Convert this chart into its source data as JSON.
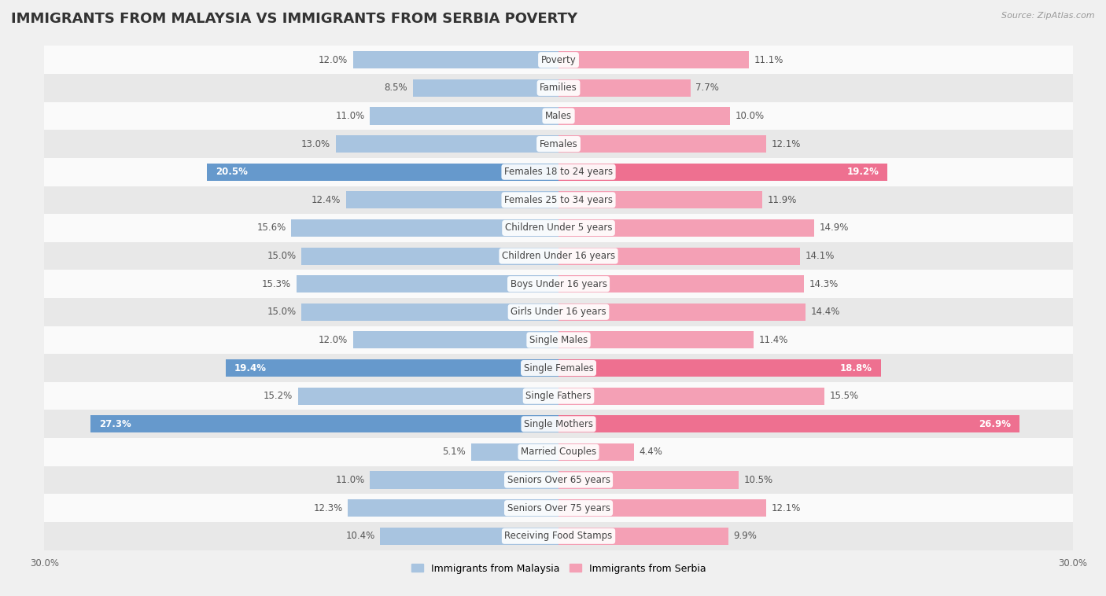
{
  "title": "IMMIGRANTS FROM MALAYSIA VS IMMIGRANTS FROM SERBIA POVERTY",
  "source": "Source: ZipAtlas.com",
  "categories": [
    "Poverty",
    "Families",
    "Males",
    "Females",
    "Females 18 to 24 years",
    "Females 25 to 34 years",
    "Children Under 5 years",
    "Children Under 16 years",
    "Boys Under 16 years",
    "Girls Under 16 years",
    "Single Males",
    "Single Females",
    "Single Fathers",
    "Single Mothers",
    "Married Couples",
    "Seniors Over 65 years",
    "Seniors Over 75 years",
    "Receiving Food Stamps"
  ],
  "malaysia_values": [
    12.0,
    8.5,
    11.0,
    13.0,
    20.5,
    12.4,
    15.6,
    15.0,
    15.3,
    15.0,
    12.0,
    19.4,
    15.2,
    27.3,
    5.1,
    11.0,
    12.3,
    10.4
  ],
  "serbia_values": [
    11.1,
    7.7,
    10.0,
    12.1,
    19.2,
    11.9,
    14.9,
    14.1,
    14.3,
    14.4,
    11.4,
    18.8,
    15.5,
    26.9,
    4.4,
    10.5,
    12.1,
    9.9
  ],
  "malaysia_color": "#a8c4e0",
  "serbia_color": "#f4a0b5",
  "malaysia_highlight_color": "#6699cc",
  "serbia_highlight_color": "#ee7090",
  "highlight_rows": [
    4,
    11,
    13
  ],
  "bar_height": 0.62,
  "xlim": 30.0,
  "background_color": "#f0f0f0",
  "row_bg_light": "#fafafa",
  "row_bg_dark": "#e8e8e8",
  "legend_malaysia": "Immigrants from Malaysia",
  "legend_serbia": "Immigrants from Serbia",
  "title_fontsize": 13,
  "label_fontsize": 8.5,
  "value_fontsize": 8.5,
  "axis_fontsize": 8.5
}
